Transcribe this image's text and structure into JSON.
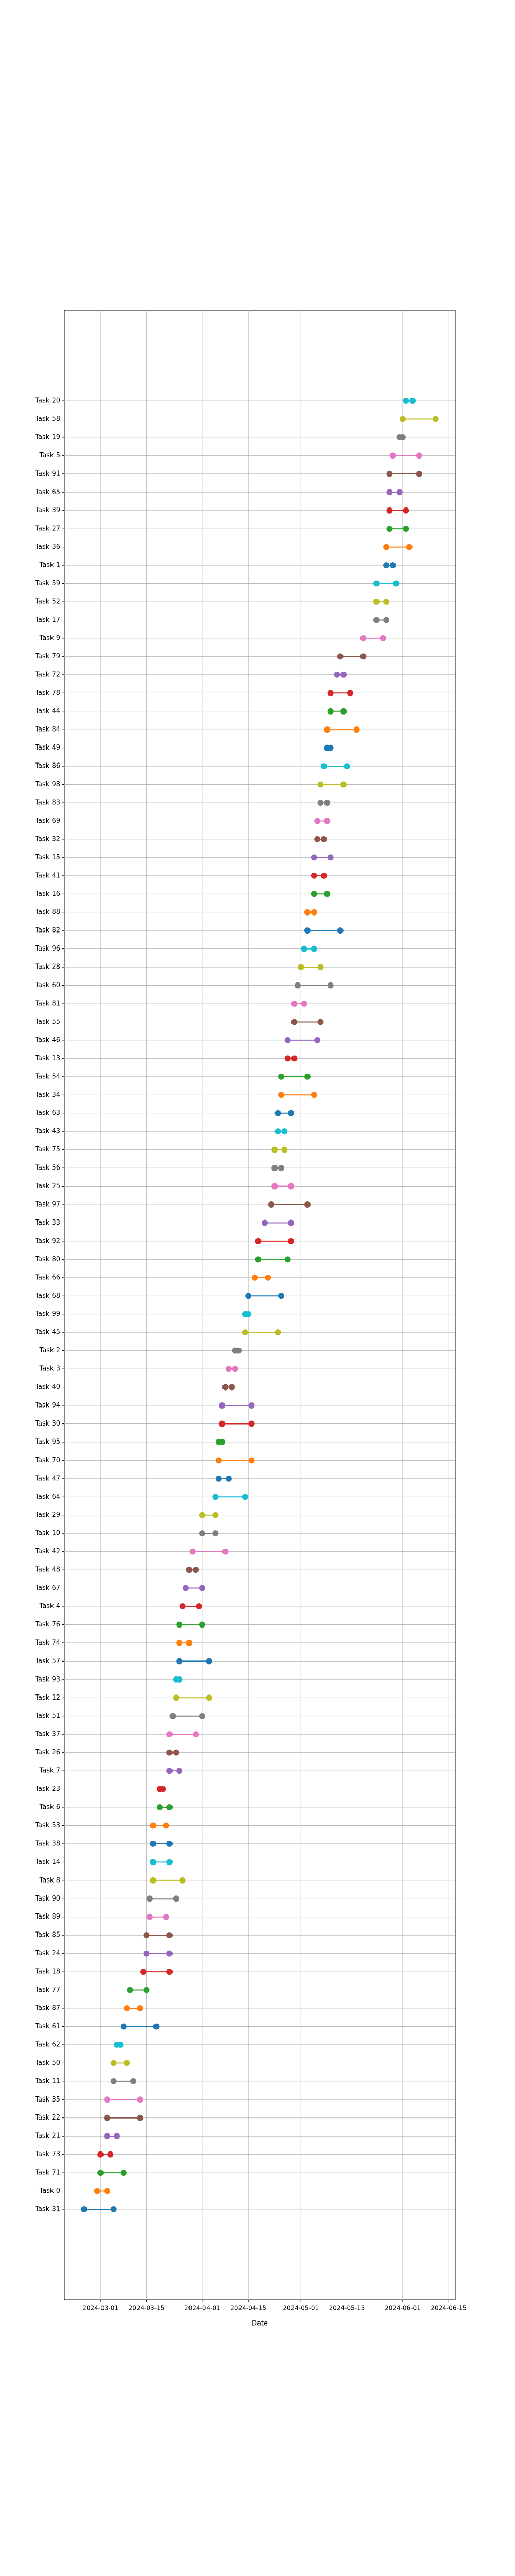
{
  "chart_data": {
    "type": "dumbbell",
    "xlabel": "Date",
    "categories": [
      "Task 31",
      "Task 0",
      "Task 71",
      "Task 73",
      "Task 21",
      "Task 22",
      "Task 35",
      "Task 11",
      "Task 50",
      "Task 62",
      "Task 61",
      "Task 87",
      "Task 77",
      "Task 18",
      "Task 24",
      "Task 85",
      "Task 89",
      "Task 90",
      "Task 8",
      "Task 14",
      "Task 38",
      "Task 53",
      "Task 6",
      "Task 23",
      "Task 7",
      "Task 26",
      "Task 37",
      "Task 51",
      "Task 12",
      "Task 93",
      "Task 57",
      "Task 74",
      "Task 76",
      "Task 4",
      "Task 67",
      "Task 48",
      "Task 42",
      "Task 10",
      "Task 29",
      "Task 64",
      "Task 47",
      "Task 70",
      "Task 95",
      "Task 30",
      "Task 94",
      "Task 40",
      "Task 3",
      "Task 2",
      "Task 45",
      "Task 99",
      "Task 68",
      "Task 66",
      "Task 80",
      "Task 92",
      "Task 33",
      "Task 97",
      "Task 25",
      "Task 56",
      "Task 75",
      "Task 43",
      "Task 63",
      "Task 34",
      "Task 54",
      "Task 13",
      "Task 46",
      "Task 55",
      "Task 81",
      "Task 60",
      "Task 28",
      "Task 96",
      "Task 82",
      "Task 88",
      "Task 16",
      "Task 41",
      "Task 15",
      "Task 32",
      "Task 69",
      "Task 83",
      "Task 98",
      "Task 86",
      "Task 49",
      "Task 84",
      "Task 44",
      "Task 78",
      "Task 72",
      "Task 79",
      "Task 9",
      "Task 17",
      "Task 52",
      "Task 59",
      "Task 1",
      "Task 36",
      "Task 27",
      "Task 39",
      "Task 65",
      "Task 91",
      "Task 5",
      "Task 19",
      "Task 58",
      "Task 20"
    ],
    "start": [
      "2024-02-25",
      "2024-02-29",
      "2024-03-01",
      "2024-03-01",
      "2024-03-03",
      "2024-03-03",
      "2024-03-03",
      "2024-03-05",
      "2024-03-05",
      "2024-03-06",
      "2024-03-08",
      "2024-03-09",
      "2024-03-10",
      "2024-03-14",
      "2024-03-15",
      "2024-03-15",
      "2024-03-16",
      "2024-03-16",
      "2024-03-17",
      "2024-03-17",
      "2024-03-17",
      "2024-03-17",
      "2024-03-19",
      "2024-03-19",
      "2024-03-22",
      "2024-03-22",
      "2024-03-22",
      "2024-03-23",
      "2024-03-24",
      "2024-03-24",
      "2024-03-25",
      "2024-03-25",
      "2024-03-25",
      "2024-03-26",
      "2024-03-27",
      "2024-03-28",
      "2024-03-29",
      "2024-04-01",
      "2024-04-01",
      "2024-04-05",
      "2024-04-06",
      "2024-04-06",
      "2024-04-06",
      "2024-04-07",
      "2024-04-07",
      "2024-04-08",
      "2024-04-09",
      "2024-04-11",
      "2024-04-14",
      "2024-04-14",
      "2024-04-15",
      "2024-04-17",
      "2024-04-18",
      "2024-04-18",
      "2024-04-20",
      "2024-04-22",
      "2024-04-23",
      "2024-04-23",
      "2024-04-23",
      "2024-04-24",
      "2024-04-24",
      "2024-04-25",
      "2024-04-25",
      "2024-04-27",
      "2024-04-27",
      "2024-04-29",
      "2024-04-29",
      "2024-04-30",
      "2024-05-01",
      "2024-05-02",
      "2024-05-03",
      "2024-05-03",
      "2024-05-05",
      "2024-05-05",
      "2024-05-05",
      "2024-05-06",
      "2024-05-06",
      "2024-05-07",
      "2024-05-07",
      "2024-05-08",
      "2024-05-09",
      "2024-05-09",
      "2024-05-10",
      "2024-05-10",
      "2024-05-12",
      "2024-05-13",
      "2024-05-20",
      "2024-05-24",
      "2024-05-24",
      "2024-05-24",
      "2024-05-27",
      "2024-05-27",
      "2024-05-28",
      "2024-05-28",
      "2024-05-28",
      "2024-05-28",
      "2024-05-29",
      "2024-05-31",
      "2024-06-01",
      "2024-06-02"
    ],
    "end": [
      "2024-03-05",
      "2024-03-03",
      "2024-03-08",
      "2024-03-04",
      "2024-03-06",
      "2024-03-13",
      "2024-03-13",
      "2024-03-11",
      "2024-03-09",
      "2024-03-07",
      "2024-03-18",
      "2024-03-13",
      "2024-03-15",
      "2024-03-22",
      "2024-03-22",
      "2024-03-22",
      "2024-03-21",
      "2024-03-24",
      "2024-03-26",
      "2024-03-22",
      "2024-03-22",
      "2024-03-21",
      "2024-03-22",
      "2024-03-20",
      "2024-03-25",
      "2024-03-24",
      "2024-03-30",
      "2024-04-01",
      "2024-04-03",
      "2024-03-25",
      "2024-04-03",
      "2024-03-28",
      "2024-04-01",
      "2024-03-31",
      "2024-04-01",
      "2024-03-30",
      "2024-04-08",
      "2024-04-05",
      "2024-04-05",
      "2024-04-14",
      "2024-04-09",
      "2024-04-16",
      "2024-04-07",
      "2024-04-16",
      "2024-04-16",
      "2024-04-10",
      "2024-04-11",
      "2024-04-12",
      "2024-04-24",
      "2024-04-15",
      "2024-04-25",
      "2024-04-21",
      "2024-04-27",
      "2024-04-28",
      "2024-04-28",
      "2024-05-03",
      "2024-04-28",
      "2024-04-25",
      "2024-04-26",
      "2024-04-26",
      "2024-04-28",
      "2024-05-05",
      "2024-05-03",
      "2024-04-29",
      "2024-05-06",
      "2024-05-07",
      "2024-05-02",
      "2024-05-10",
      "2024-05-07",
      "2024-05-05",
      "2024-05-13",
      "2024-05-05",
      "2024-05-09",
      "2024-05-08",
      "2024-05-10",
      "2024-05-08",
      "2024-05-09",
      "2024-05-09",
      "2024-05-14",
      "2024-05-15",
      "2024-05-10",
      "2024-05-18",
      "2024-05-14",
      "2024-05-16",
      "2024-05-14",
      "2024-05-20",
      "2024-05-26",
      "2024-05-27",
      "2024-05-27",
      "2024-05-30",
      "2024-05-29",
      "2024-06-03",
      "2024-06-02",
      "2024-06-02",
      "2024-05-31",
      "2024-06-06",
      "2024-06-06",
      "2024-06-01",
      "2024-06-11",
      "2024-06-04"
    ],
    "colors": [
      "#1f77b4",
      "#ff7f0e",
      "#2ca02c",
      "#d62728",
      "#9467bd",
      "#8c564b",
      "#e377c2",
      "#7f7f7f",
      "#bcbd22",
      "#17becf"
    ],
    "xlim": [
      "2024-02-19",
      "2024-06-17"
    ],
    "xticks": [
      "2024-03-01",
      "2024-03-15",
      "2024-04-01",
      "2024-04-15",
      "2024-05-01",
      "2024-05-15",
      "2024-06-01",
      "2024-06-15"
    ],
    "grid": true
  }
}
